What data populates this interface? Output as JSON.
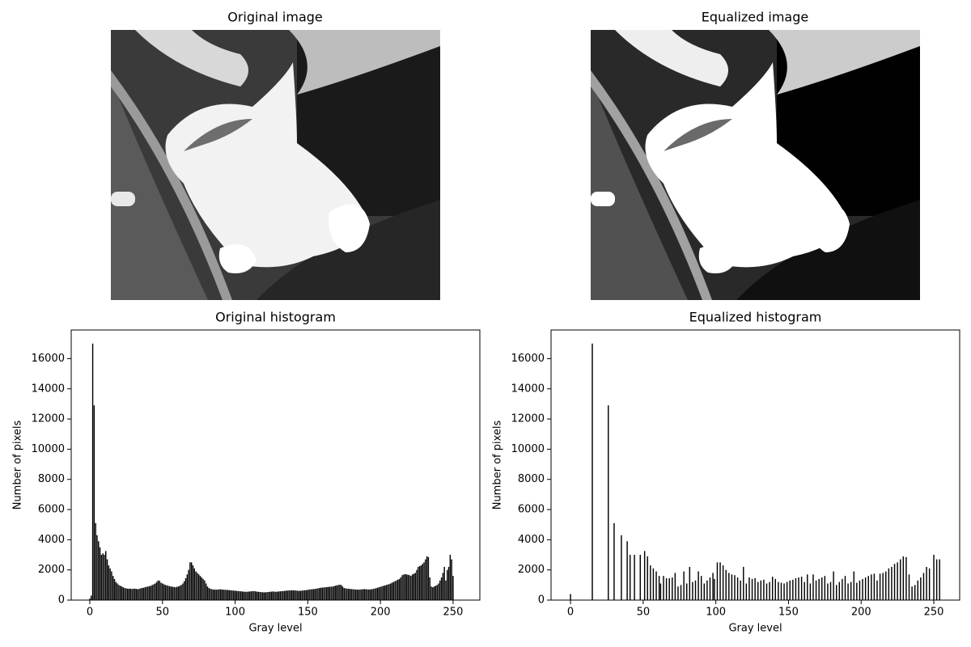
{
  "images": [
    {
      "title": "Original image"
    },
    {
      "title": "Equalized image"
    }
  ],
  "chart_data": [
    {
      "type": "bar",
      "title": "Original histogram",
      "xlabel": "Gray level",
      "ylabel": "Number of pixels",
      "color": "#000000",
      "xlim": [
        -12.8,
        268.4
      ],
      "ylim": [
        0,
        17900
      ],
      "xticks": [
        0,
        50,
        100,
        150,
        200,
        250
      ],
      "yticks": [
        0,
        2000,
        4000,
        6000,
        8000,
        10000,
        12000,
        14000,
        16000
      ],
      "x": [
        0,
        1,
        2,
        3,
        4,
        5,
        6,
        7,
        8,
        9,
        10,
        11,
        12,
        13,
        14,
        15,
        16,
        17,
        18,
        19,
        20,
        21,
        22,
        23,
        24,
        25,
        26,
        27,
        28,
        29,
        30,
        31,
        32,
        33,
        34,
        35,
        36,
        37,
        38,
        39,
        40,
        41,
        42,
        43,
        44,
        45,
        46,
        47,
        48,
        49,
        50,
        51,
        52,
        53,
        54,
        55,
        56,
        57,
        58,
        59,
        60,
        61,
        62,
        63,
        64,
        65,
        66,
        67,
        68,
        69,
        70,
        71,
        72,
        73,
        74,
        75,
        76,
        77,
        78,
        79,
        80,
        81,
        82,
        83,
        84,
        85,
        86,
        87,
        88,
        89,
        90,
        91,
        92,
        93,
        94,
        95,
        96,
        97,
        98,
        99,
        100,
        101,
        102,
        103,
        104,
        105,
        106,
        107,
        108,
        109,
        110,
        111,
        112,
        113,
        114,
        115,
        116,
        117,
        118,
        119,
        120,
        121,
        122,
        123,
        124,
        125,
        126,
        127,
        128,
        129,
        130,
        131,
        132,
        133,
        134,
        135,
        136,
        137,
        138,
        139,
        140,
        141,
        142,
        143,
        144,
        145,
        146,
        147,
        148,
        149,
        150,
        151,
        152,
        153,
        154,
        155,
        156,
        157,
        158,
        159,
        160,
        161,
        162,
        163,
        164,
        165,
        166,
        167,
        168,
        169,
        170,
        171,
        172,
        173,
        174,
        175,
        176,
        177,
        178,
        179,
        180,
        181,
        182,
        183,
        184,
        185,
        186,
        187,
        188,
        189,
        190,
        191,
        192,
        193,
        194,
        195,
        196,
        197,
        198,
        199,
        200,
        201,
        202,
        203,
        204,
        205,
        206,
        207,
        208,
        209,
        210,
        211,
        212,
        213,
        214,
        215,
        216,
        217,
        218,
        219,
        220,
        221,
        222,
        223,
        224,
        225,
        226,
        227,
        228,
        229,
        230,
        231,
        232,
        233,
        234,
        235,
        236,
        237,
        238,
        239,
        240,
        241,
        242,
        243,
        244,
        245,
        246,
        247,
        248,
        249,
        250
      ],
      "values": [
        100,
        300,
        17000,
        12900,
        5100,
        4300,
        3900,
        3500,
        3000,
        3100,
        3000,
        3250,
        2700,
        2300,
        2100,
        1900,
        1600,
        1400,
        1200,
        1100,
        1000,
        950,
        900,
        850,
        800,
        780,
        760,
        750,
        760,
        740,
        750,
        760,
        740,
        720,
        750,
        780,
        800,
        820,
        850,
        880,
        900,
        920,
        950,
        1000,
        1050,
        1100,
        1200,
        1300,
        1280,
        1150,
        1100,
        1050,
        1000,
        980,
        950,
        920,
        900,
        880,
        870,
        850,
        880,
        900,
        950,
        1000,
        1100,
        1250,
        1450,
        1700,
        2000,
        2500,
        2500,
        2300,
        2100,
        1900,
        1800,
        1700,
        1600,
        1500,
        1400,
        1300,
        1100,
        900,
        800,
        750,
        720,
        700,
        700,
        690,
        700,
        710,
        720,
        700,
        690,
        680,
        680,
        670,
        660,
        650,
        640,
        630,
        620,
        610,
        600,
        590,
        580,
        570,
        560,
        550,
        550,
        560,
        570,
        580,
        590,
        600,
        580,
        560,
        550,
        540,
        530,
        520,
        510,
        520,
        530,
        540,
        550,
        560,
        570,
        560,
        550,
        560,
        570,
        580,
        590,
        600,
        610,
        620,
        630,
        640,
        640,
        650,
        650,
        640,
        630,
        620,
        610,
        620,
        630,
        640,
        650,
        660,
        680,
        700,
        710,
        720,
        730,
        740,
        760,
        780,
        800,
        820,
        830,
        840,
        850,
        860,
        870,
        880,
        890,
        900,
        920,
        950,
        980,
        1000,
        1020,
        1000,
        900,
        800,
        780,
        760,
        750,
        740,
        730,
        720,
        710,
        700,
        700,
        690,
        700,
        710,
        720,
        730,
        720,
        710,
        700,
        710,
        720,
        740,
        760,
        790,
        820,
        850,
        880,
        910,
        940,
        970,
        1000,
        1030,
        1060,
        1100,
        1150,
        1200,
        1250,
        1300,
        1350,
        1400,
        1500,
        1650,
        1700,
        1720,
        1700,
        1680,
        1650,
        1600,
        1700,
        1750,
        1800,
        2000,
        2200,
        2250,
        2300,
        2400,
        2500,
        2700,
        2900,
        2850,
        1500,
        900,
        850,
        900,
        950,
        1000,
        1100,
        1300,
        1500,
        1800,
        2200,
        1300,
        2000,
        2200,
        3000,
        2700,
        1600
      ]
    },
    {
      "type": "bar",
      "title": "Equalized histogram",
      "xlabel": "Gray level",
      "ylabel": "Number of pixels",
      "color": "#000000",
      "xlim": [
        -13.4,
        267.8
      ],
      "ylim": [
        0,
        17900
      ],
      "xticks": [
        0,
        50,
        100,
        150,
        200,
        250
      ],
      "yticks": [
        0,
        2000,
        4000,
        6000,
        8000,
        10000,
        12000,
        14000,
        16000
      ],
      "x": [
        0,
        15,
        26,
        30,
        35,
        39,
        41,
        44,
        48,
        51,
        53,
        55,
        57,
        59,
        61,
        62,
        64,
        66,
        68,
        70,
        72,
        74,
        76,
        78,
        80,
        82,
        84,
        86,
        88,
        90,
        92,
        94,
        96,
        98,
        99,
        101,
        103,
        105,
        107,
        109,
        111,
        113,
        115,
        117,
        119,
        121,
        123,
        125,
        127,
        129,
        131,
        133,
        135,
        137,
        139,
        141,
        143,
        145,
        147,
        149,
        151,
        153,
        155,
        157,
        159,
        161,
        163,
        165,
        167,
        169,
        171,
        173,
        175,
        177,
        179,
        181,
        183,
        185,
        187,
        189,
        191,
        193,
        195,
        197,
        199,
        201,
        203,
        205,
        207,
        209,
        211,
        213,
        215,
        217,
        219,
        221,
        223,
        225,
        227,
        229,
        231,
        233,
        235,
        237,
        239,
        241,
        243,
        245,
        247,
        250,
        252,
        254
      ],
      "values": [
        400,
        17000,
        12900,
        5100,
        4300,
        3900,
        3000,
        3000,
        3000,
        3250,
        2900,
        2300,
        2100,
        1900,
        1600,
        1100,
        1600,
        1450,
        1450,
        1500,
        1800,
        900,
        1000,
        1900,
        1100,
        2200,
        1200,
        1300,
        1900,
        1600,
        1100,
        1300,
        1500,
        1800,
        1400,
        2500,
        2500,
        2300,
        2000,
        1800,
        1700,
        1650,
        1500,
        1300,
        2200,
        1100,
        1500,
        1400,
        1450,
        1200,
        1300,
        1350,
        1100,
        1200,
        1550,
        1400,
        1200,
        1150,
        1100,
        1200,
        1300,
        1350,
        1450,
        1500,
        1550,
        1200,
        1700,
        1100,
        1700,
        1300,
        1400,
        1500,
        1600,
        1100,
        1200,
        1900,
        1000,
        1200,
        1400,
        1600,
        1100,
        1200,
        1900,
        1150,
        1300,
        1400,
        1500,
        1600,
        1700,
        1750,
        1300,
        1750,
        1800,
        1900,
        2100,
        2200,
        2400,
        2500,
        2700,
        2900,
        2850,
        1700,
        900,
        1000,
        1300,
        1500,
        1800,
        2200,
        2100,
        3000,
        2700,
        2700
      ]
    }
  ]
}
